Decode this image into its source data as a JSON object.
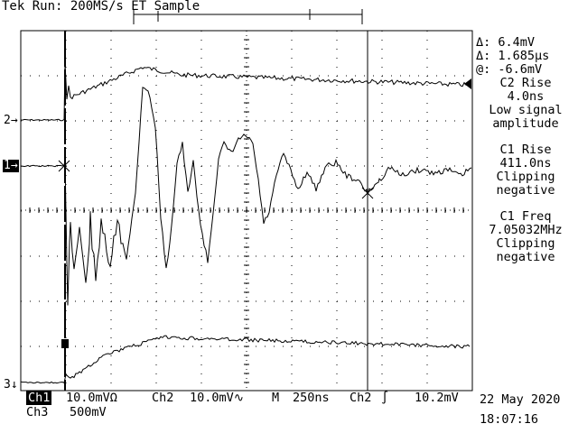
{
  "header": {
    "status": "Tek Run: 200MS/s ET Sample"
  },
  "markers": {
    "ch2": "2→",
    "ch1": "1→",
    "ch3": "3↓"
  },
  "readout": {
    "delta_v": "Δ: 6.4mV",
    "delta_t": "Δ: 1.685µs",
    "at_v": "@: -6.6mV",
    "m1_title": "C2 Rise",
    "m1_value": "4.0ns",
    "m1_note1": "Low signal",
    "m1_note2": "amplitude",
    "m2_title": "C1 Rise",
    "m2_value": "411.0ns",
    "m2_note1": "Clipping",
    "m2_note2": "negative",
    "m3_title": "C1 Freq",
    "m3_value": "7.05032MHz",
    "m3_note1": "Clipping",
    "m3_note2": "negative"
  },
  "footer": {
    "ch1_label": "Ch1",
    "ch1_scale": "10.0mVΩ",
    "ch2_label": "Ch2",
    "ch2_scale": "10.0mV∿",
    "timebase_label": "M",
    "timebase": "250ns",
    "trigger_src": "Ch2",
    "trigger_slope": "∫",
    "trigger_level": "10.2mV",
    "ch3_label": "Ch3",
    "ch3_scale": "500mV",
    "date": "22 May 2020",
    "time": "18:07:16"
  },
  "colors": {
    "background": "#ffffff",
    "trace": "#000000"
  }
}
